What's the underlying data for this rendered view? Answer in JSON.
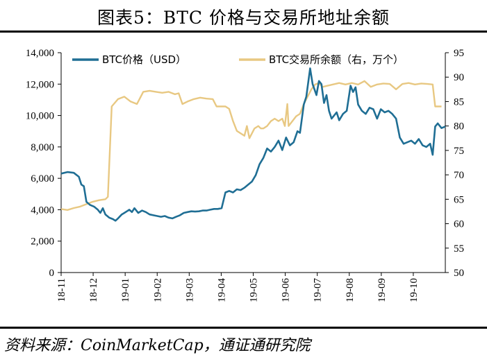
{
  "chart_data": {
    "type": "line",
    "title": "图表5：BTC 价格与交易所地址余额",
    "source": "资料来源：CoinMarketCap，通证通研究院",
    "x_tick_labels": [
      "18-11",
      "18-12",
      "19-01",
      "19-02",
      "19-03",
      "19-04",
      "19-05",
      "19-06",
      "19-07",
      "19-08",
      "19-09",
      "19-10"
    ],
    "y_left": {
      "ylim": [
        0,
        14000
      ],
      "ticks": [
        "0",
        "2,000",
        "4,000",
        "6,000",
        "8,000",
        "10,000",
        "12,000",
        "14,000"
      ]
    },
    "y_right": {
      "ylim": [
        50,
        95
      ],
      "ticks": [
        "50",
        "55",
        "60",
        "65",
        "70",
        "75",
        "80",
        "85",
        "90",
        "95"
      ]
    },
    "grid": false,
    "legend_placement": "top",
    "series": [
      {
        "name": "BTC价格（USD）",
        "axis": "left",
        "color": "#1f6e94",
        "points": [
          [
            0,
            6300
          ],
          [
            5,
            6400
          ],
          [
            10,
            6350
          ],
          [
            14,
            6100
          ],
          [
            16,
            5600
          ],
          [
            18,
            5500
          ],
          [
            20,
            4500
          ],
          [
            23,
            4300
          ],
          [
            26,
            4200
          ],
          [
            29,
            4000
          ],
          [
            31,
            3800
          ],
          [
            33,
            4100
          ],
          [
            35,
            3700
          ],
          [
            38,
            3500
          ],
          [
            41,
            3400
          ],
          [
            43,
            3300
          ],
          [
            45,
            3450
          ],
          [
            48,
            3700
          ],
          [
            50,
            3800
          ],
          [
            52,
            3900
          ],
          [
            54,
            4000
          ],
          [
            56,
            3850
          ],
          [
            58,
            4100
          ],
          [
            61,
            3800
          ],
          [
            64,
            3950
          ],
          [
            67,
            3850
          ],
          [
            70,
            3700
          ],
          [
            73,
            3650
          ],
          [
            76,
            3600
          ],
          [
            79,
            3550
          ],
          [
            82,
            3600
          ],
          [
            85,
            3500
          ],
          [
            88,
            3450
          ],
          [
            91,
            3550
          ],
          [
            94,
            3650
          ],
          [
            97,
            3800
          ],
          [
            100,
            3850
          ],
          [
            103,
            3900
          ],
          [
            106,
            3880
          ],
          [
            109,
            3900
          ],
          [
            112,
            3950
          ],
          [
            115,
            3950
          ],
          [
            118,
            4000
          ],
          [
            121,
            4050
          ],
          [
            124,
            4050
          ],
          [
            127,
            4100
          ],
          [
            130,
            5100
          ],
          [
            133,
            5200
          ],
          [
            136,
            5100
          ],
          [
            139,
            5300
          ],
          [
            142,
            5250
          ],
          [
            145,
            5400
          ],
          [
            148,
            5600
          ],
          [
            151,
            5800
          ],
          [
            154,
            6200
          ],
          [
            157,
            6900
          ],
          [
            160,
            7300
          ],
          [
            163,
            7900
          ],
          [
            166,
            7700
          ],
          [
            169,
            8000
          ],
          [
            172,
            8400
          ],
          [
            175,
            7800
          ],
          [
            178,
            8600
          ],
          [
            181,
            8100
          ],
          [
            184,
            8300
          ],
          [
            187,
            9000
          ],
          [
            189,
            8900
          ],
          [
            192,
            10700
          ],
          [
            194,
            11200
          ],
          [
            197,
            13000
          ],
          [
            199,
            12000
          ],
          [
            202,
            11300
          ],
          [
            204,
            12200
          ],
          [
            206,
            12000
          ],
          [
            208,
            10800
          ],
          [
            210,
            11300
          ],
          [
            212,
            10300
          ],
          [
            214,
            9800
          ],
          [
            216,
            10000
          ],
          [
            218,
            10200
          ],
          [
            220,
            9700
          ],
          [
            223,
            10100
          ],
          [
            226,
            10300
          ],
          [
            229,
            11900
          ],
          [
            231,
            11500
          ],
          [
            233,
            11800
          ],
          [
            235,
            10700
          ],
          [
            238,
            10300
          ],
          [
            241,
            10100
          ],
          [
            244,
            10500
          ],
          [
            247,
            10400
          ],
          [
            250,
            9800
          ],
          [
            253,
            10400
          ],
          [
            256,
            10200
          ],
          [
            259,
            10300
          ],
          [
            262,
            10100
          ],
          [
            265,
            9800
          ],
          [
            268,
            8600
          ],
          [
            271,
            8200
          ],
          [
            274,
            8300
          ],
          [
            277,
            8400
          ],
          [
            280,
            8200
          ],
          [
            283,
            8500
          ],
          [
            286,
            8100
          ],
          [
            289,
            8000
          ],
          [
            292,
            8200
          ],
          [
            294,
            7500
          ],
          [
            296,
            9300
          ],
          [
            298,
            9500
          ],
          [
            301,
            9200
          ],
          [
            304,
            9300
          ]
        ]
      },
      {
        "name": "BTC交易所余额（右，万个）",
        "axis": "right",
        "color": "#e8c882",
        "points": [
          [
            0,
            63
          ],
          [
            5,
            62.8
          ],
          [
            10,
            63.2
          ],
          [
            15,
            63.5
          ],
          [
            20,
            64
          ],
          [
            25,
            64.5
          ],
          [
            30,
            64.8
          ],
          [
            35,
            65
          ],
          [
            37,
            65.5
          ],
          [
            40,
            84
          ],
          [
            45,
            85.5
          ],
          [
            50,
            86
          ],
          [
            55,
            85
          ],
          [
            60,
            84.5
          ],
          [
            63,
            86
          ],
          [
            65,
            87
          ],
          [
            70,
            87.2
          ],
          [
            75,
            87
          ],
          [
            80,
            86.8
          ],
          [
            85,
            87
          ],
          [
            90,
            86.5
          ],
          [
            93,
            86.7
          ],
          [
            96,
            84.5
          ],
          [
            100,
            85
          ],
          [
            105,
            85.5
          ],
          [
            110,
            85.8
          ],
          [
            115,
            85.6
          ],
          [
            120,
            85.5
          ],
          [
            123,
            84
          ],
          [
            127,
            84
          ],
          [
            130,
            84
          ],
          [
            133,
            83.5
          ],
          [
            136,
            81
          ],
          [
            139,
            79
          ],
          [
            142,
            78.5
          ],
          [
            145,
            78
          ],
          [
            147,
            80
          ],
          [
            149,
            77.5
          ],
          [
            151,
            78.5
          ],
          [
            153,
            79.5
          ],
          [
            156,
            80
          ],
          [
            158,
            79.5
          ],
          [
            160,
            79.5
          ],
          [
            163,
            80
          ],
          [
            166,
            81
          ],
          [
            169,
            81.5
          ],
          [
            172,
            81
          ],
          [
            175,
            81.5
          ],
          [
            177,
            80
          ],
          [
            179,
            84.5
          ],
          [
            180,
            80
          ],
          [
            183,
            81
          ],
          [
            186,
            82
          ],
          [
            189,
            82.5
          ],
          [
            192,
            84.5
          ],
          [
            195,
            86
          ],
          [
            198,
            87.5
          ],
          [
            201,
            88.5
          ],
          [
            204,
            88.8
          ],
          [
            207,
            88
          ],
          [
            210,
            88.2
          ],
          [
            215,
            88.5
          ],
          [
            220,
            88.8
          ],
          [
            225,
            88.5
          ],
          [
            230,
            88.8
          ],
          [
            235,
            88.5
          ],
          [
            240,
            89.2
          ],
          [
            245,
            88
          ],
          [
            250,
            88.5
          ],
          [
            255,
            88.7
          ],
          [
            260,
            88.6
          ],
          [
            265,
            87.5
          ],
          [
            270,
            88.6
          ],
          [
            275,
            88.8
          ],
          [
            280,
            88.5
          ],
          [
            285,
            88.7
          ],
          [
            290,
            88.6
          ],
          [
            294,
            88.5
          ],
          [
            296,
            84
          ],
          [
            298,
            84
          ],
          [
            301,
            84
          ]
        ]
      }
    ]
  }
}
